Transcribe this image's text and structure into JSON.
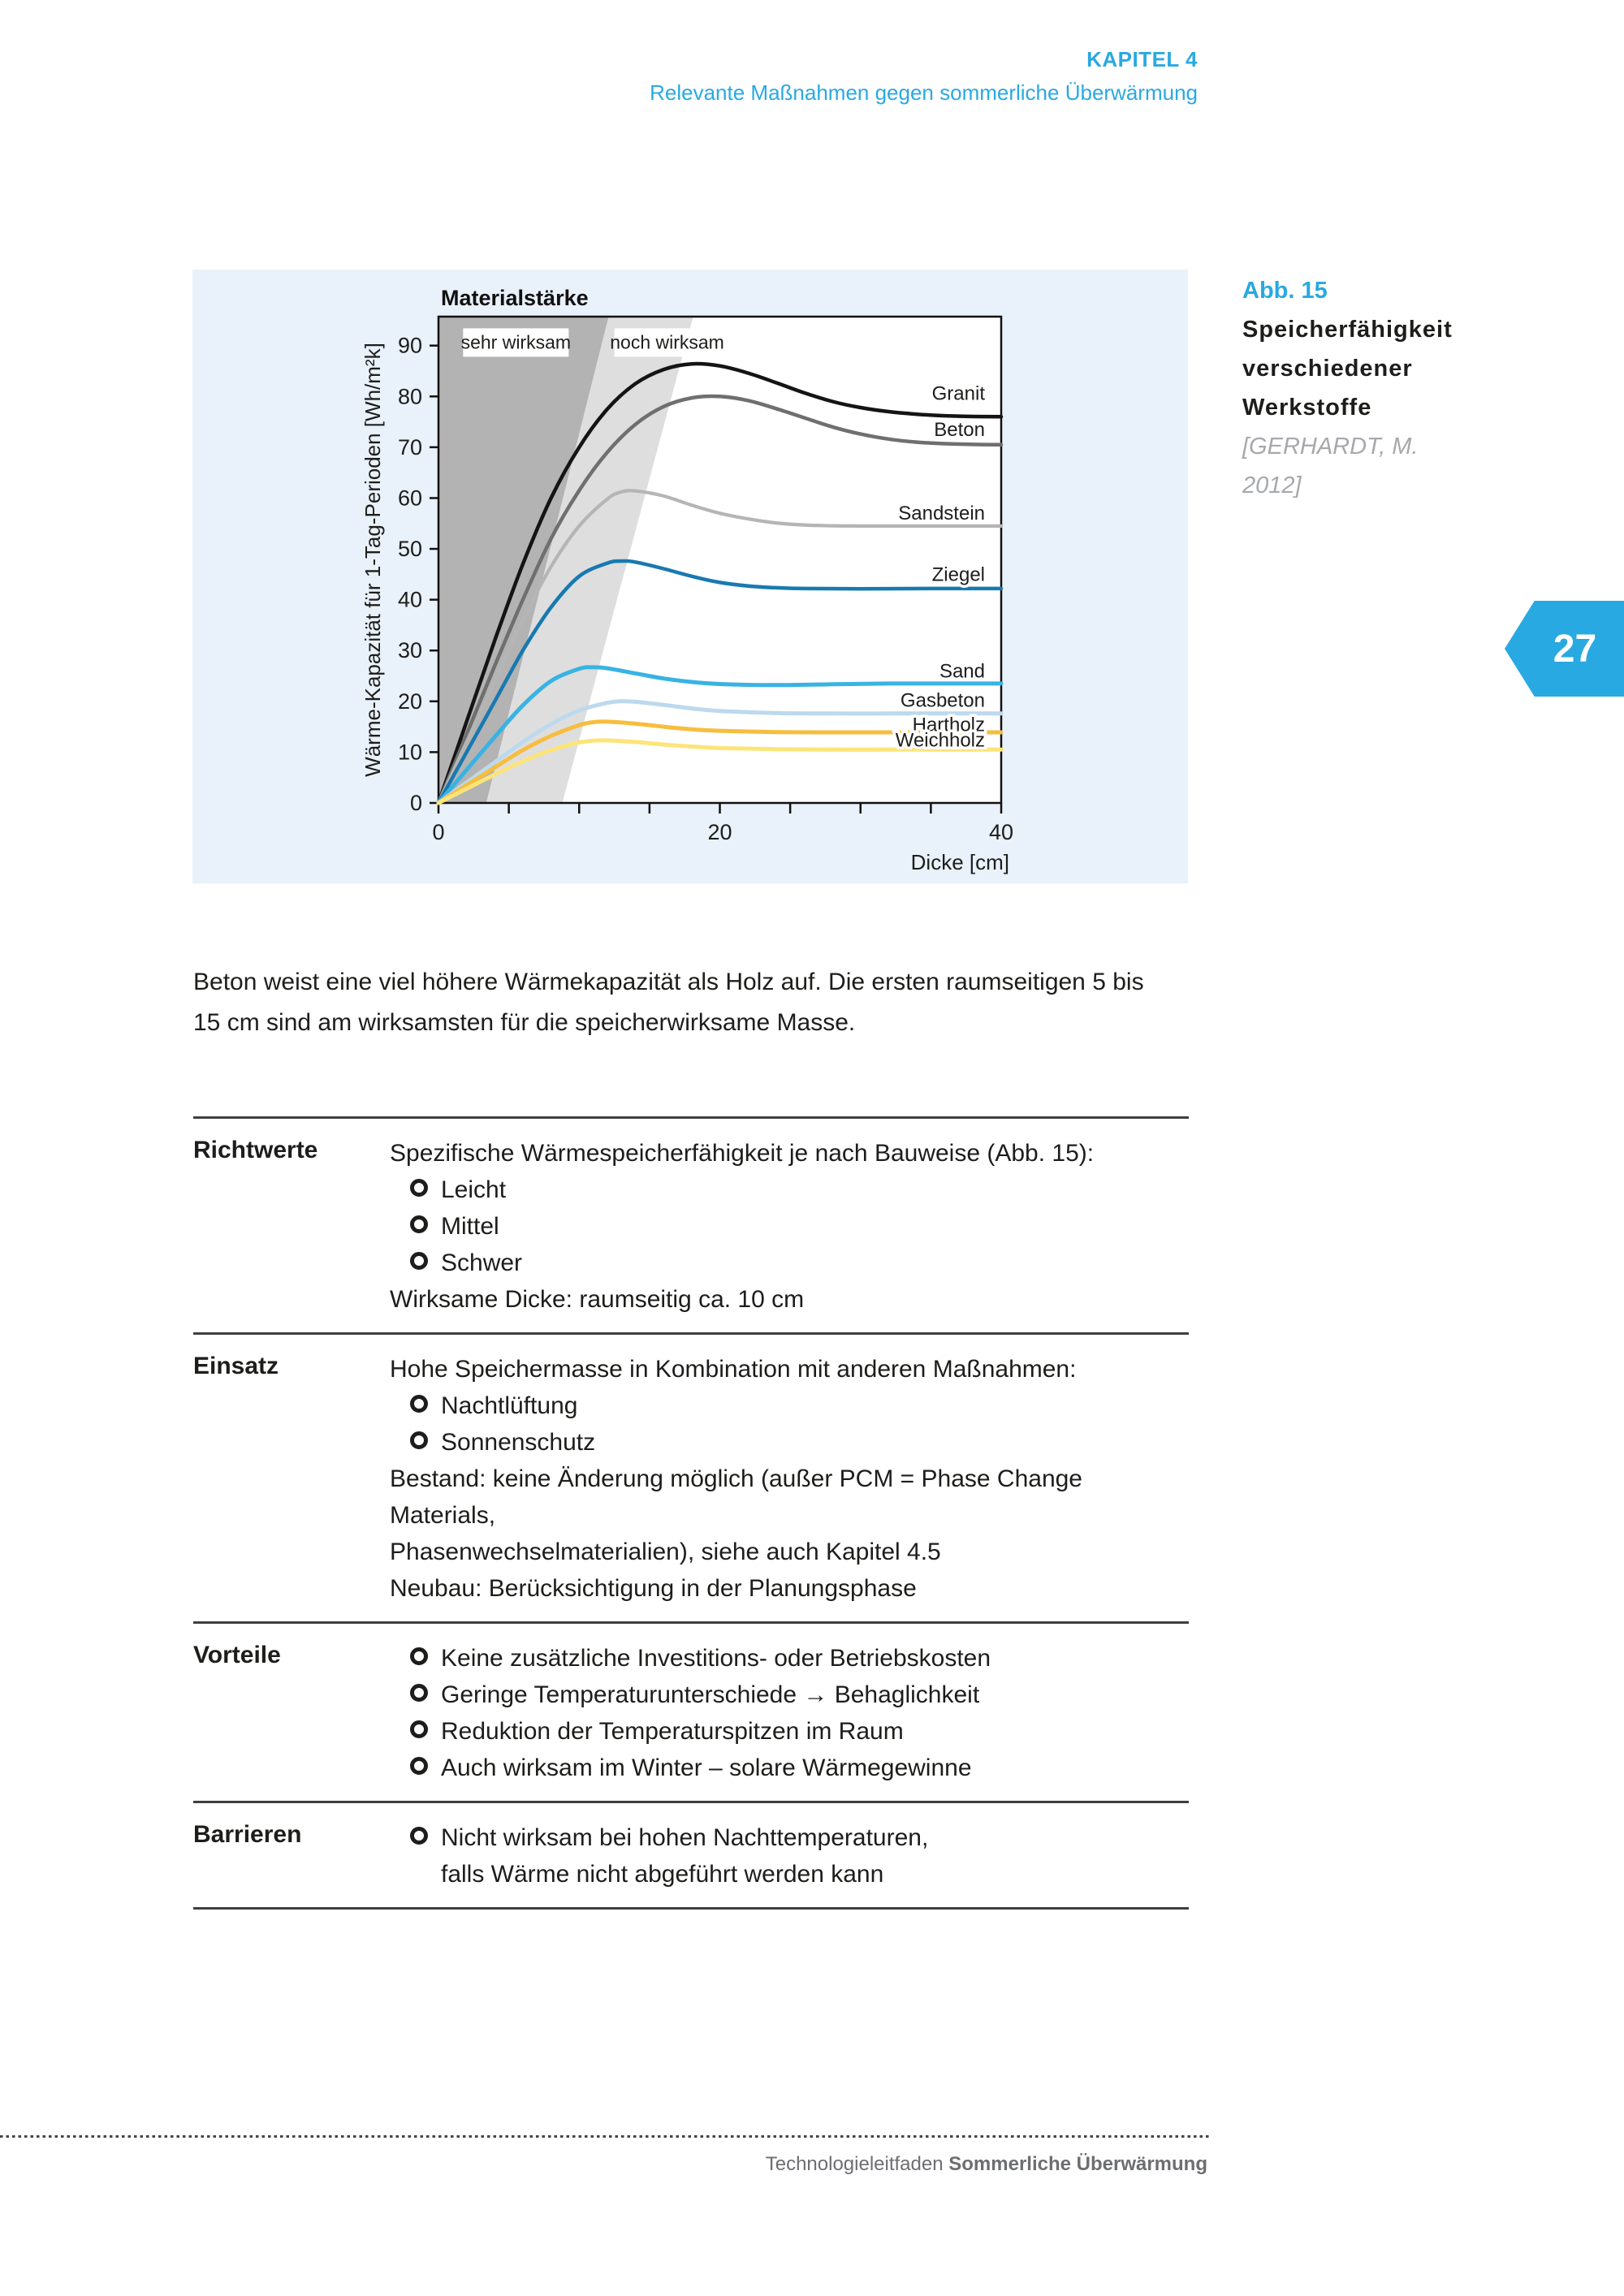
{
  "header": {
    "kapitel": "KAPITEL 4",
    "subtitle": "Relevante Maßnahmen gegen sommerliche Überwärmung"
  },
  "figure_caption": {
    "abb": "Abb. 15",
    "title": "Speicherfähigkeit verschiedener Werkstoffe",
    "source": "[GERHARDT, M. 2012]"
  },
  "page_tab": {
    "number": "27"
  },
  "chart_data": {
    "type": "line",
    "title": "Materialstärke",
    "xlabel": "Dicke [cm]",
    "ylabel": "Wärme-Kapazität für 1-Tag-Perioden [Wh/m²k]",
    "xlim": [
      0,
      40
    ],
    "ylim": [
      0,
      95.7
    ],
    "x_ticks": [
      0,
      5,
      10,
      15,
      20,
      25,
      30,
      35,
      40
    ],
    "x_tick_labels": [
      {
        "v": 0,
        "t": "0"
      },
      {
        "v": 20,
        "t": "20"
      },
      {
        "v": 40,
        "t": "40"
      }
    ],
    "y_ticks": [
      0,
      10,
      20,
      30,
      40,
      50,
      60,
      70,
      80,
      90
    ],
    "grid": false,
    "legend_position": "labels at right ends of curves",
    "zones": [
      {
        "name": "sehr wirksam",
        "color": "#b3b3b3",
        "polygon": [
          [
            0,
            0
          ],
          [
            3.4,
            0
          ],
          [
            12.1,
            95.7
          ],
          [
            0,
            95.7
          ]
        ],
        "label": {
          "text": "sehr wirksam",
          "x": 1.75,
          "y": 93.4
        }
      },
      {
        "name": "noch wirksam",
        "color": "#dedede",
        "polygon": [
          [
            3.4,
            0
          ],
          [
            8.8,
            0
          ],
          [
            18.1,
            95.7
          ],
          [
            12.1,
            95.7
          ]
        ],
        "label": {
          "text": "noch wirksam",
          "x": 12.5,
          "y": 93.4
        }
      }
    ],
    "series": [
      {
        "name": "Granit",
        "color": "#141414",
        "width": 4.5,
        "label_y": 80.6,
        "points": [
          [
            0,
            0
          ],
          [
            2,
            16
          ],
          [
            4,
            32
          ],
          [
            6,
            47
          ],
          [
            8,
            60
          ],
          [
            10,
            70
          ],
          [
            12,
            77.5
          ],
          [
            14,
            82.5
          ],
          [
            16,
            85.3
          ],
          [
            18,
            86.4
          ],
          [
            20,
            86
          ],
          [
            22,
            84.6
          ],
          [
            24,
            82.7
          ],
          [
            26,
            80.7
          ],
          [
            28,
            79
          ],
          [
            30,
            77.8
          ],
          [
            32,
            77
          ],
          [
            34,
            76.5
          ],
          [
            36,
            76.2
          ],
          [
            38,
            76.05
          ],
          [
            40,
            76
          ]
        ]
      },
      {
        "name": "Beton",
        "color": "#6f6f6f",
        "width": 4.5,
        "label_y": 73.5,
        "points": [
          [
            0,
            0
          ],
          [
            2,
            13.5
          ],
          [
            4,
            27
          ],
          [
            6,
            40
          ],
          [
            8,
            52
          ],
          [
            10,
            61.5
          ],
          [
            12,
            69
          ],
          [
            14,
            74.5
          ],
          [
            16,
            78
          ],
          [
            18,
            79.7
          ],
          [
            20,
            80
          ],
          [
            22,
            79.2
          ],
          [
            24,
            77.6
          ],
          [
            26,
            75.8
          ],
          [
            28,
            74
          ],
          [
            30,
            72.6
          ],
          [
            32,
            71.6
          ],
          [
            34,
            71
          ],
          [
            36,
            70.7
          ],
          [
            38,
            70.55
          ],
          [
            40,
            70.5
          ]
        ]
      },
      {
        "name": "Sandstein",
        "color": "#b5b5b5",
        "width": 4.2,
        "label_y": 57,
        "points": [
          [
            0,
            0
          ],
          [
            2,
            12
          ],
          [
            4,
            24
          ],
          [
            6,
            36
          ],
          [
            8,
            46.5
          ],
          [
            10,
            54.5
          ],
          [
            12,
            59.8
          ],
          [
            13,
            61.2
          ],
          [
            14,
            61.4
          ],
          [
            16,
            60.4
          ],
          [
            18,
            58.6
          ],
          [
            20,
            57
          ],
          [
            22,
            55.9
          ],
          [
            24,
            55.1
          ],
          [
            26,
            54.7
          ],
          [
            28,
            54.55
          ],
          [
            30,
            54.5
          ],
          [
            34,
            54.5
          ],
          [
            40,
            54.5
          ]
        ]
      },
      {
        "name": "Ziegel",
        "color": "#1879b0",
        "width": 4.5,
        "label_y": 45,
        "points": [
          [
            0,
            0
          ],
          [
            2,
            10
          ],
          [
            4,
            20
          ],
          [
            6,
            30
          ],
          [
            8,
            38.5
          ],
          [
            10,
            44.6
          ],
          [
            12,
            47.2
          ],
          [
            13,
            47.6
          ],
          [
            14,
            47.4
          ],
          [
            16,
            46.1
          ],
          [
            18,
            44.6
          ],
          [
            20,
            43.4
          ],
          [
            22,
            42.7
          ],
          [
            24,
            42.35
          ],
          [
            26,
            42.2
          ],
          [
            30,
            42.15
          ],
          [
            35,
            42.2
          ],
          [
            40,
            42.2
          ]
        ]
      },
      {
        "name": "Sand",
        "color": "#38b3e3",
        "width": 5,
        "label_y": 26,
        "points": [
          [
            0,
            0
          ],
          [
            2,
            6.5
          ],
          [
            4,
            13
          ],
          [
            6,
            19.2
          ],
          [
            8,
            24
          ],
          [
            10,
            26.4
          ],
          [
            11,
            26.7
          ],
          [
            12,
            26.5
          ],
          [
            14,
            25.5
          ],
          [
            16,
            24.5
          ],
          [
            18,
            23.8
          ],
          [
            20,
            23.4
          ],
          [
            24,
            23.2
          ],
          [
            28,
            23.35
          ],
          [
            32,
            23.5
          ],
          [
            36,
            23.5
          ],
          [
            40,
            23.5
          ]
        ]
      },
      {
        "name": "Gasbeton",
        "color": "#bcd9ee",
        "width": 5,
        "label_y": 20.2,
        "points": [
          [
            0,
            0
          ],
          [
            2,
            4
          ],
          [
            4,
            8
          ],
          [
            6,
            12
          ],
          [
            8,
            15.5
          ],
          [
            10,
            18.2
          ],
          [
            12,
            19.7
          ],
          [
            13,
            20
          ],
          [
            14,
            19.9
          ],
          [
            16,
            19.3
          ],
          [
            18,
            18.6
          ],
          [
            20,
            18.1
          ],
          [
            24,
            17.7
          ],
          [
            28,
            17.6
          ],
          [
            32,
            17.6
          ],
          [
            36,
            17.6
          ],
          [
            40,
            17.6
          ]
        ]
      },
      {
        "name": "Hartholz",
        "color": "#f7bd3e",
        "width": 5,
        "label_y": 15.4,
        "points": [
          [
            0,
            0
          ],
          [
            2,
            3.5
          ],
          [
            4,
            7
          ],
          [
            6,
            10.4
          ],
          [
            8,
            13.2
          ],
          [
            10,
            15.3
          ],
          [
            11,
            15.9
          ],
          [
            12,
            16
          ],
          [
            14,
            15.6
          ],
          [
            16,
            15
          ],
          [
            18,
            14.5
          ],
          [
            20,
            14.2
          ],
          [
            24,
            13.95
          ],
          [
            28,
            13.9
          ],
          [
            32,
            13.9
          ],
          [
            36,
            13.9
          ],
          [
            40,
            13.9
          ]
        ]
      },
      {
        "name": "Weichholz",
        "color": "#fce478",
        "width": 5,
        "label_y": 12.4,
        "points": [
          [
            0,
            0
          ],
          [
            2,
            2.8
          ],
          [
            4,
            5.6
          ],
          [
            6,
            8.2
          ],
          [
            8,
            10.4
          ],
          [
            10,
            11.9
          ],
          [
            11,
            12.25
          ],
          [
            12,
            12.3
          ],
          [
            14,
            12
          ],
          [
            16,
            11.5
          ],
          [
            18,
            11.1
          ],
          [
            20,
            10.8
          ],
          [
            24,
            10.6
          ],
          [
            28,
            10.5
          ],
          [
            32,
            10.5
          ],
          [
            36,
            10.5
          ],
          [
            40,
            10.5
          ]
        ]
      }
    ]
  },
  "paragraph": {
    "lines": [
      "Beton weist eine viel höhere Wärmekapazität als Holz auf. Die ersten raumseitigen 5 bis",
      "15 cm sind am wirksamsten für die speicherwirksame Masse."
    ]
  },
  "table": {
    "rows": [
      {
        "label": "Richtwerte",
        "lines": [
          {
            "type": "text",
            "text": "Spezifische Wärmespeicherfähigkeit je nach Bauweise (Abb. 15):"
          },
          {
            "type": "bullet",
            "text": "Leicht"
          },
          {
            "type": "bullet",
            "text": "Mittel"
          },
          {
            "type": "bullet",
            "text": "Schwer"
          },
          {
            "type": "text",
            "text": "Wirksame Dicke: raumseitig ca. 10 cm"
          }
        ]
      },
      {
        "label": "Einsatz",
        "lines": [
          {
            "type": "text",
            "text": "Hohe Speichermasse in Kombination mit anderen Maßnahmen:"
          },
          {
            "type": "bullet",
            "text": "Nachtlüftung"
          },
          {
            "type": "bullet",
            "text": "Sonnenschutz"
          },
          {
            "type": "text",
            "text": "Bestand: keine Änderung möglich (außer PCM = Phase Change Materials,"
          },
          {
            "type": "text",
            "text": "Phasenwechselmaterialien), siehe auch Kapitel 4.5"
          },
          {
            "type": "text",
            "text": "Neubau: Berücksichtigung in der Planungsphase"
          }
        ]
      },
      {
        "label": "Vorteile",
        "lines": [
          {
            "type": "bullet",
            "text": "Keine zusätzliche Investitions- oder Betriebskosten"
          },
          {
            "type": "bullet",
            "text": "Geringe Temperaturunterschiede → Behaglichkeit"
          },
          {
            "type": "bullet",
            "text": "Reduktion der Temperaturspitzen im Raum"
          },
          {
            "type": "bullet",
            "text": "Auch wirksam im Winter – solare Wärmegewinne"
          }
        ]
      },
      {
        "label": "Barrieren",
        "lines": [
          {
            "type": "bullet",
            "text": "Nicht wirksam bei hohen Nachttemperaturen,"
          },
          {
            "type": "cont",
            "text": "falls Wärme nicht abgeführt werden kann"
          }
        ]
      }
    ]
  },
  "footer": {
    "normal": "Technologieleitfaden ",
    "bold": "Sommerliche Überwärmung"
  }
}
